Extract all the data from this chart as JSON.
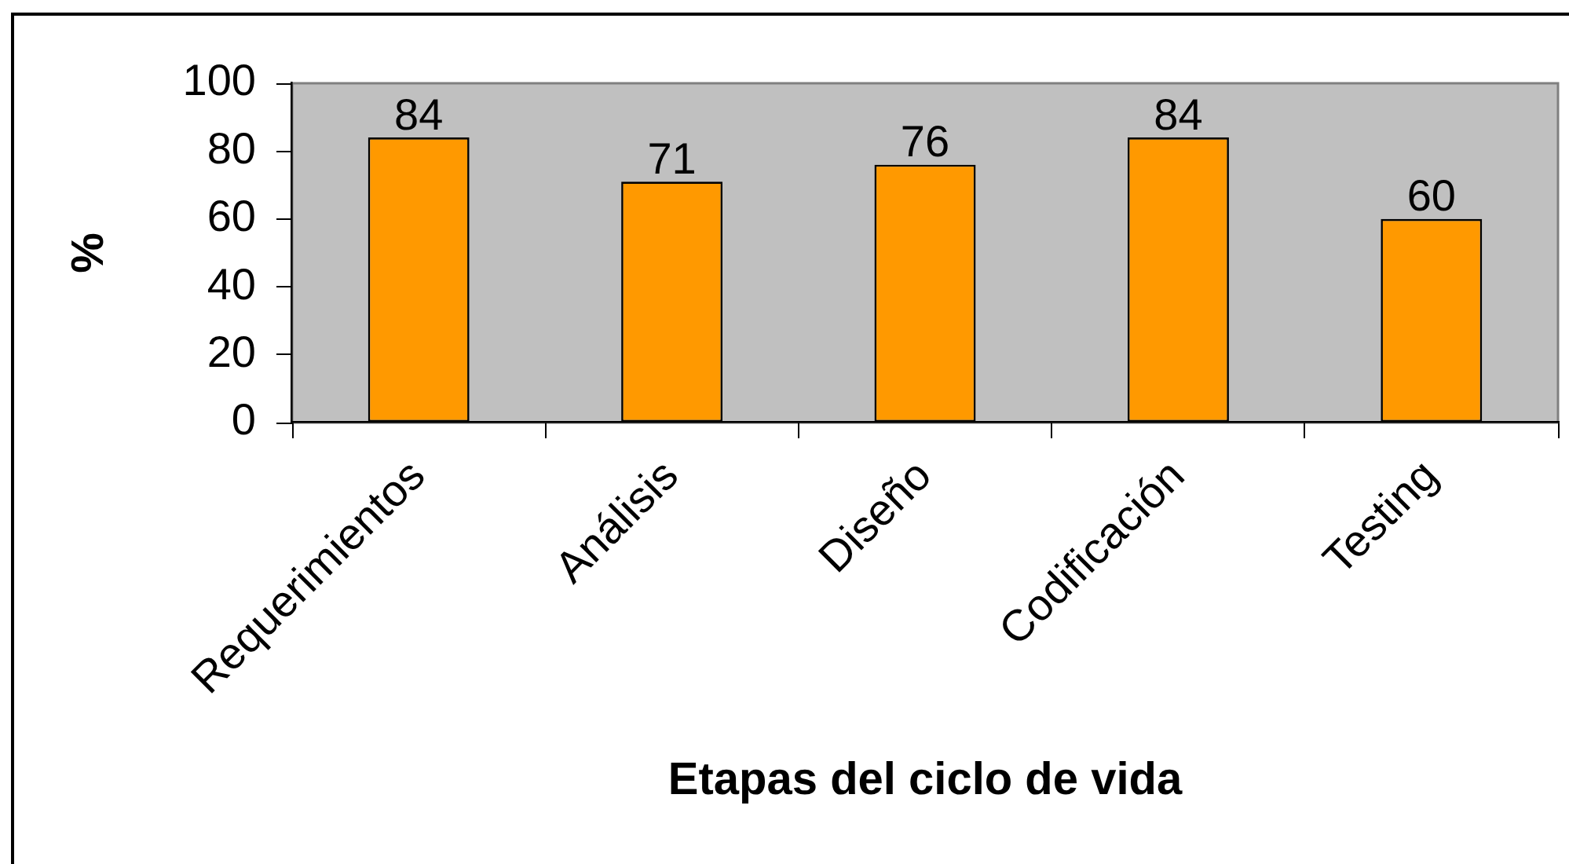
{
  "chart_data": {
    "type": "bar",
    "xlabel": "Etapas del ciclo de vida",
    "ylabel": "%",
    "categories": [
      "Requerimientos",
      "Análisis",
      "Diseño",
      "Codificación",
      "Testing"
    ],
    "values": [
      84,
      71,
      76,
      84,
      60
    ],
    "color": "#ff9900",
    "ylim": [
      0,
      100
    ],
    "yticks": [
      0,
      20,
      40,
      60,
      80,
      100
    ],
    "data_labels": true
  }
}
